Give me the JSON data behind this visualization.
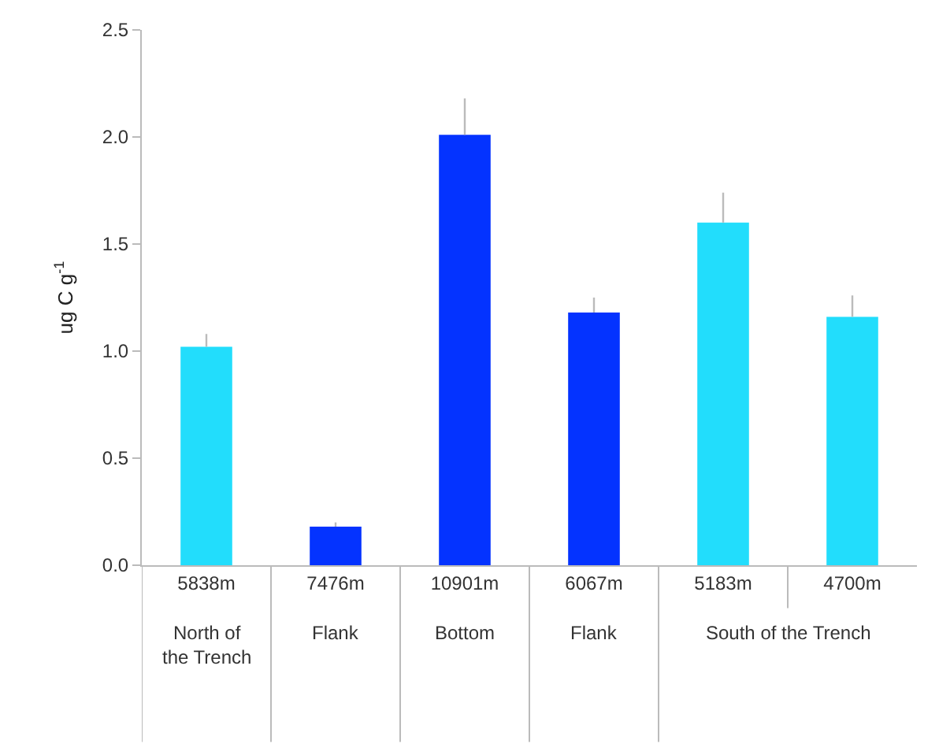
{
  "chart_data": {
    "type": "bar",
    "categories": [
      "5838m",
      "7476m",
      "10901m",
      "6067m",
      "5183m",
      "4700m"
    ],
    "values": [
      1.02,
      0.18,
      2.01,
      1.18,
      1.6,
      1.16
    ],
    "colors": [
      "#22ddfc",
      "#0433ff",
      "#0433ff",
      "#0433ff",
      "#22ddfc",
      "#22ddfc"
    ],
    "errors": [
      [
        1.02,
        1.08
      ],
      [
        0.18,
        0.2
      ],
      [
        2.01,
        2.18
      ],
      [
        1.18,
        1.25
      ],
      [
        1.6,
        1.74
      ],
      [
        1.16,
        1.26
      ]
    ],
    "ylabel": "ug C g$^{-1}$",
    "ylim": [
      0,
      2.5
    ],
    "yticks": [
      {
        "value": 0,
        "label": "0.0"
      },
      {
        "value": 0.5,
        "label": "0.5"
      },
      {
        "value": 1,
        "label": "1.0"
      },
      {
        "value": 1.5,
        "label": "1.5"
      },
      {
        "value": 2,
        "label": "2.0"
      },
      {
        "value": 2.5,
        "label": "2.5"
      }
    ],
    "annotations": [
      "North of the Trench",
      "Flank",
      "Bottom",
      "Flank",
      "South of the Trench"
    ],
    "legend": false
  }
}
